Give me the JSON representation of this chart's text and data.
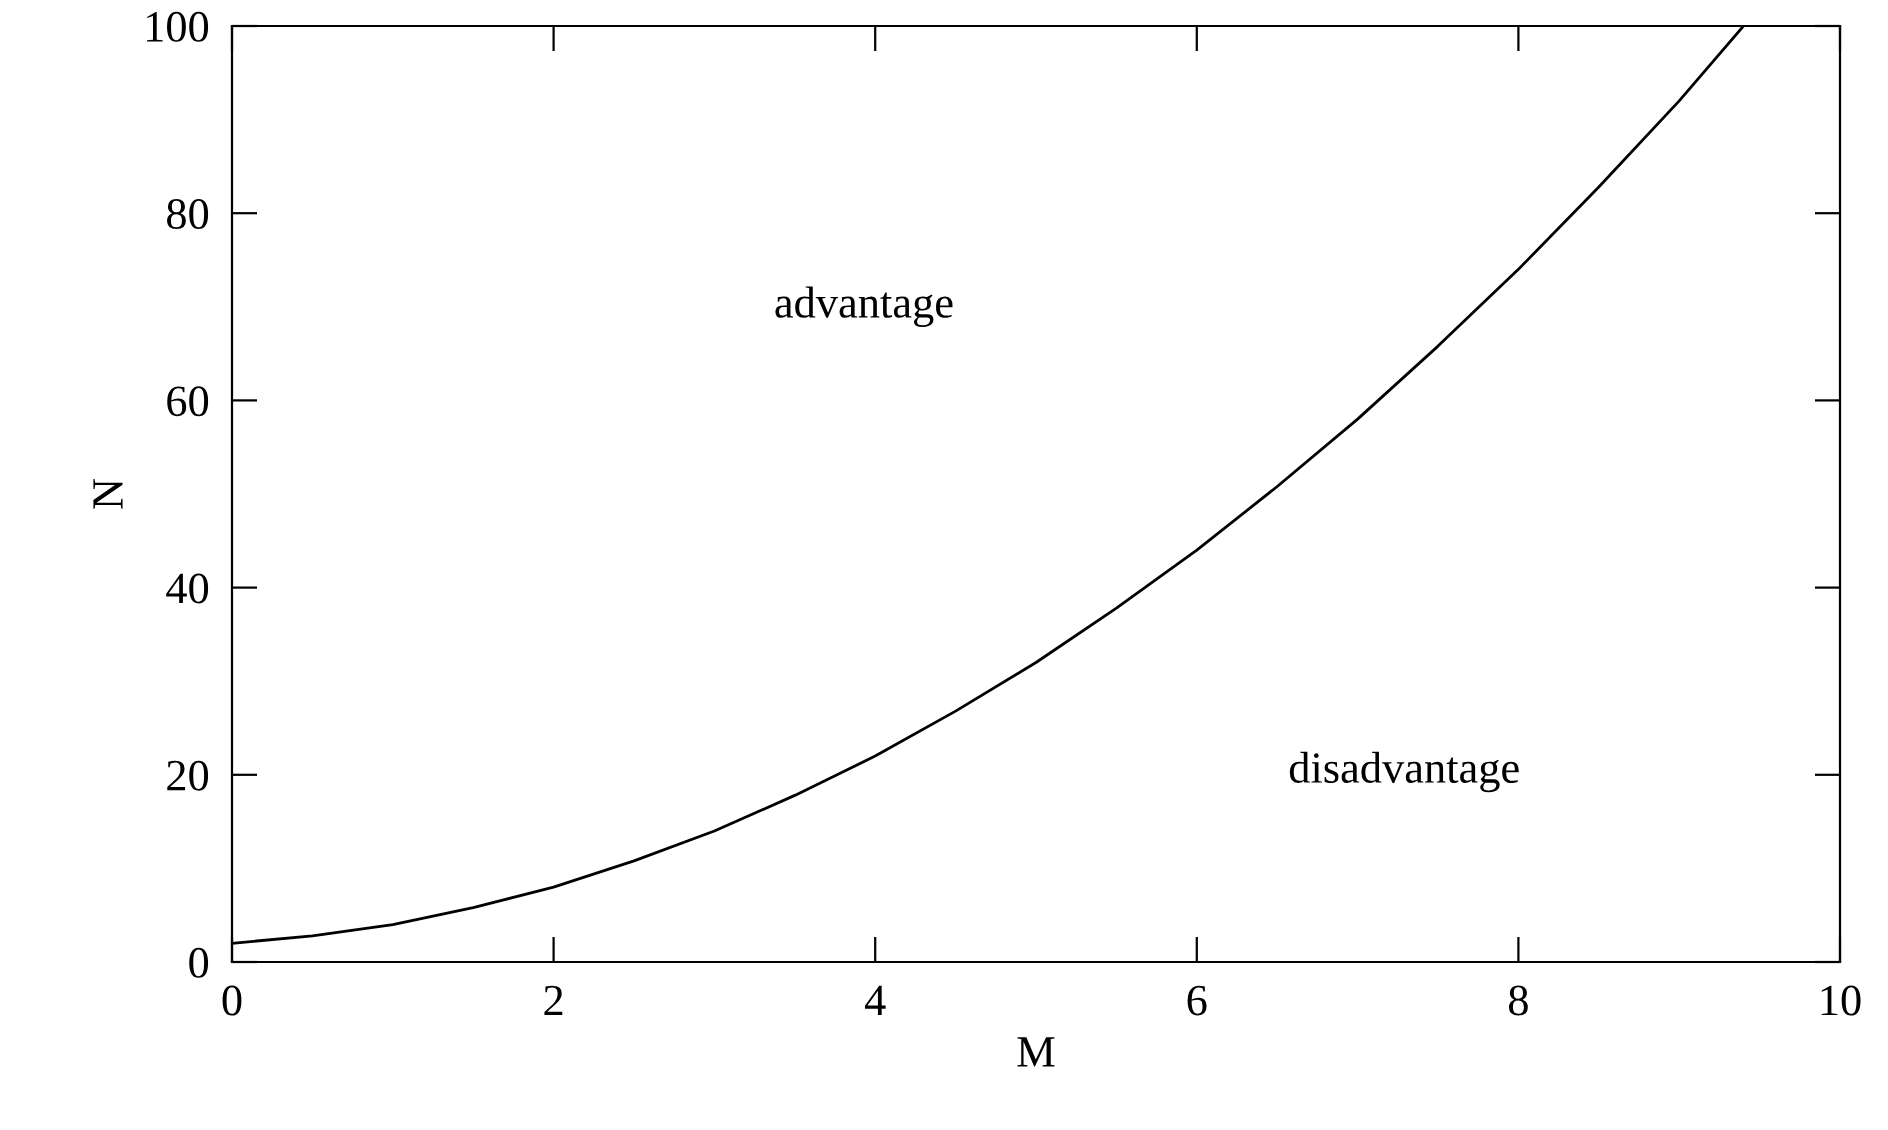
{
  "chart_data": {
    "type": "line",
    "xlabel": "M",
    "ylabel": "N",
    "xlim": [
      0,
      10
    ],
    "ylim": [
      0,
      100
    ],
    "xticks": [
      0,
      2,
      4,
      6,
      8,
      10
    ],
    "yticks": [
      0,
      20,
      40,
      60,
      80,
      100
    ],
    "x": [
      0,
      0.5,
      1,
      1.5,
      2,
      2.5,
      3,
      3.5,
      4,
      4.5,
      5,
      5.5,
      6,
      6.5,
      7,
      7.5,
      8,
      8.5,
      9,
      9.4
    ],
    "series": [
      {
        "color": "#000000",
        "values": [
          2,
          2.8,
          4,
          5.8,
          8,
          10.8,
          14,
          17.8,
          22,
          26.8,
          32,
          37.8,
          44,
          50.8,
          58,
          65.8,
          74,
          82.8,
          92,
          100
        ]
      }
    ],
    "annotations": [
      "advantage",
      "disadvantage"
    ],
    "grid": false,
    "legend": false,
    "marker": "none",
    "line_style": "solid"
  }
}
